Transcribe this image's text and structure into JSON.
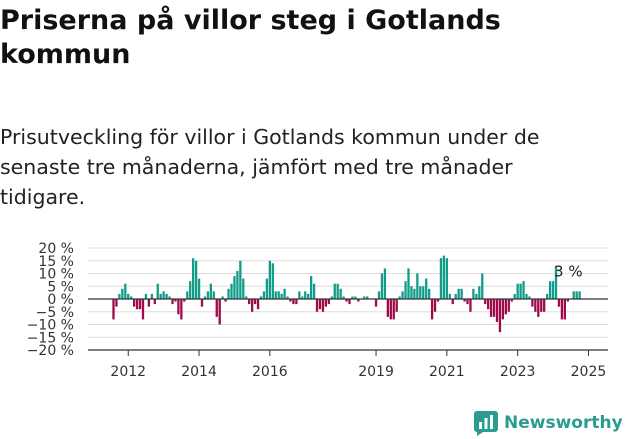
{
  "title": "Priserna på villor steg i Gotlands kommun",
  "subtitle": "Prisutveckling för villor i Gotlands kommun under de senaste tre månaderna, jämfört med tre månader tidigare.",
  "brand": {
    "name": "Newsworthy",
    "logo_icon": "newsworthy-chart-logo-icon"
  },
  "colors": {
    "positive": "#119c8a",
    "negative": "#9e0b48",
    "grid": "#dddddd",
    "axis": "#333333",
    "brand": "#2a9d8f"
  },
  "chart_data": {
    "type": "bar",
    "ylim": [
      -20,
      20
    ],
    "yticks": [
      -20,
      -15,
      -10,
      -5,
      0,
      5,
      10,
      15,
      20
    ],
    "ytick_labels": [
      "−20 %",
      "−15 %",
      "−10 %",
      "−5 %",
      "0 %",
      "5 %",
      "10 %",
      "15 %",
      "20 %"
    ],
    "x_start": "2011-08",
    "xticks": [
      {
        "month": "2012-01",
        "label": "2012"
      },
      {
        "month": "2014-01",
        "label": "2014"
      },
      {
        "month": "2016-01",
        "label": "2016"
      },
      {
        "month": "2019-01",
        "label": "2019"
      },
      {
        "month": "2021-01",
        "label": "2021"
      },
      {
        "month": "2023-01",
        "label": "2023"
      },
      {
        "month": "2025-01",
        "label": "2025"
      }
    ],
    "last_value_label": "3 %",
    "values": [
      -8,
      -3,
      2,
      4,
      6,
      2,
      1,
      -3,
      -4,
      -4,
      -8,
      2,
      -3,
      2,
      -2,
      6,
      2,
      3,
      2,
      1,
      -2,
      -1,
      -6,
      -8,
      -1,
      3,
      7,
      16,
      15,
      8,
      -3,
      1,
      3,
      6,
      3,
      -7,
      -10,
      1,
      -1,
      4,
      6,
      9,
      11,
      15,
      8,
      1,
      -2,
      -5,
      -2,
      -4,
      1,
      3,
      8,
      15,
      14,
      3,
      3,
      2,
      4,
      1,
      -1,
      -2,
      -2,
      3,
      1,
      3,
      2,
      9,
      6,
      -5,
      -4,
      -5,
      -3,
      -2,
      1,
      6,
      6,
      4,
      1,
      -1,
      -2,
      1,
      1,
      -1,
      0,
      1,
      1,
      0,
      0,
      -3,
      3,
      10,
      12,
      -7,
      -8,
      -8,
      -5,
      1,
      3,
      7,
      12,
      5,
      4,
      10,
      5,
      5,
      8,
      4,
      -8,
      -5,
      -1,
      16,
      17,
      16,
      2,
      -2,
      2,
      4,
      4,
      -1,
      -2,
      -5,
      4,
      2,
      5,
      10,
      -2,
      -4,
      -7,
      -7,
      -9,
      -13,
      -8,
      -6,
      -5,
      -1,
      2,
      6,
      6,
      7,
      2,
      1,
      -3,
      -5,
      -7,
      -5,
      -5,
      2,
      7,
      7,
      13,
      -3,
      -8,
      -8,
      -1,
      0,
      3,
      3,
      3
    ]
  }
}
